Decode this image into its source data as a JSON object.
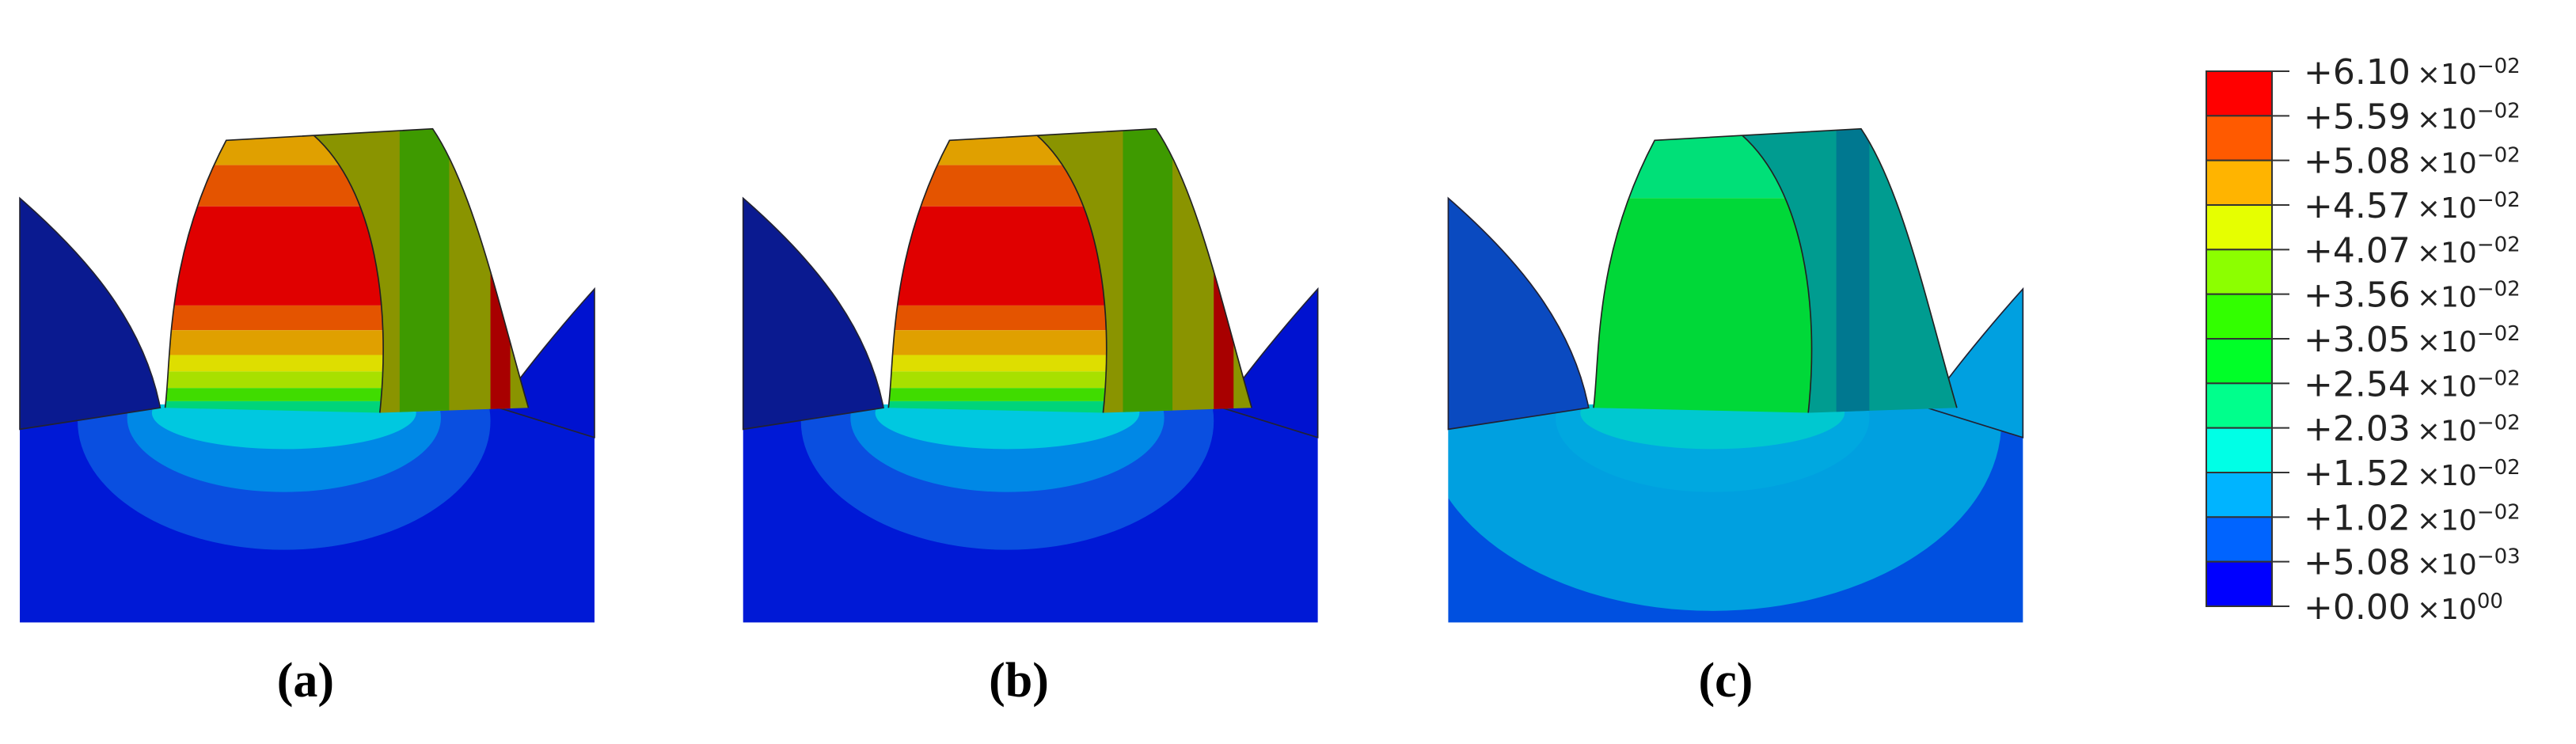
{
  "panels": [
    {
      "label": "(a)",
      "variant": "high"
    },
    {
      "label": "(b)",
      "variant": "high"
    },
    {
      "label": "(c)",
      "variant": "low"
    }
  ],
  "legend": {
    "colors": [
      "#ff0000",
      "#ff5a00",
      "#ffb400",
      "#e6ff00",
      "#8cff00",
      "#32ff00",
      "#00ff28",
      "#00ff8c",
      "#00ffe6",
      "#00b4ff",
      "#0064ff",
      "#0000ff"
    ],
    "labels": [
      {
        "value": "+6.10",
        "base": "×10",
        "exponent": "−02"
      },
      {
        "value": "+5.59",
        "base": "×10",
        "exponent": "−02"
      },
      {
        "value": "+5.08",
        "base": "×10",
        "exponent": "−02"
      },
      {
        "value": "+4.57",
        "base": "×10",
        "exponent": "−02"
      },
      {
        "value": "+4.07",
        "base": "×10",
        "exponent": "−02"
      },
      {
        "value": "+3.56",
        "base": "×10",
        "exponent": "−02"
      },
      {
        "value": "+3.05",
        "base": "×10",
        "exponent": "−02"
      },
      {
        "value": "+2.54",
        "base": "×10",
        "exponent": "−02"
      },
      {
        "value": "+2.03",
        "base": "×10",
        "exponent": "−02"
      },
      {
        "value": "+1.52",
        "base": "×10",
        "exponent": "−02"
      },
      {
        "value": "+1.02",
        "base": "×10",
        "exponent": "−02"
      },
      {
        "value": "+5.08",
        "base": "×10",
        "exponent": "−03"
      },
      {
        "value": "+0.00",
        "base": "×10",
        "exponent": "00"
      }
    ]
  }
}
